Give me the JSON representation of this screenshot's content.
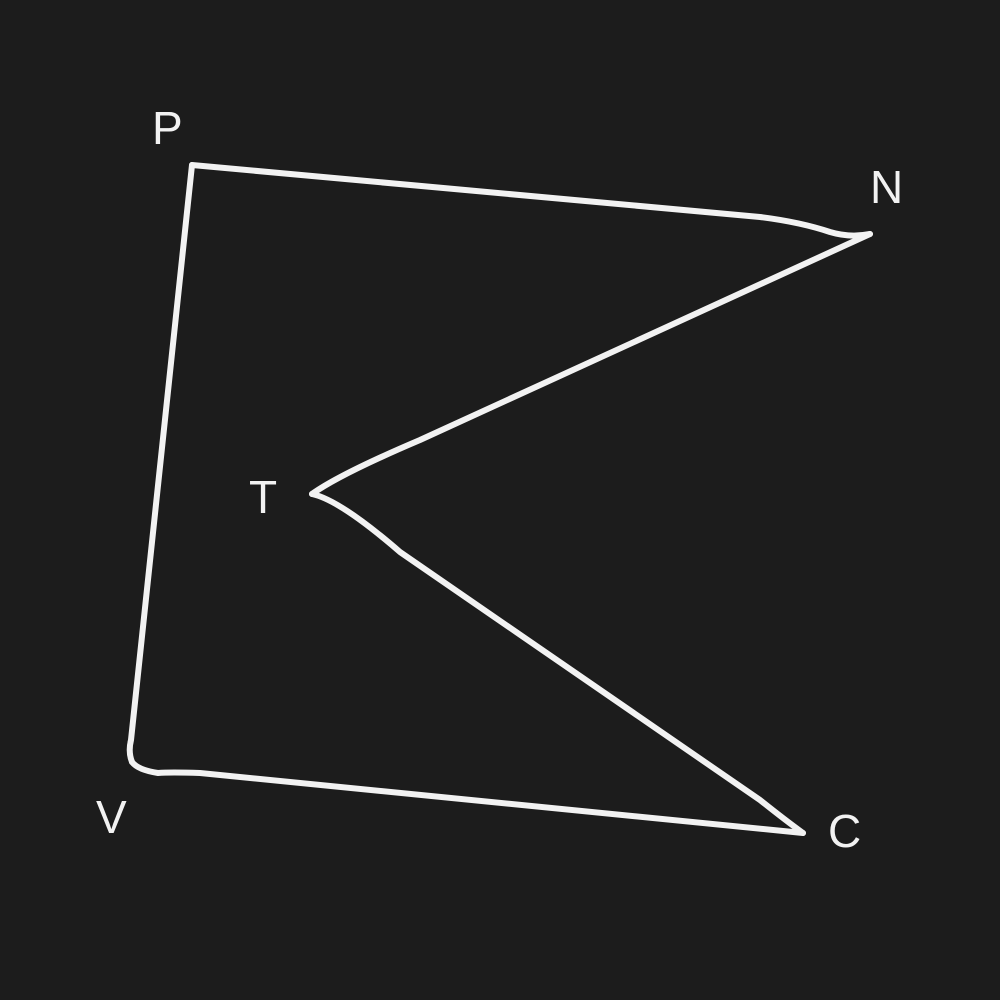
{
  "figure": {
    "background_color": "#1c1c1c",
    "stroke_color": "#f2f2f2",
    "shape": "hand-drawn pentagon",
    "vertices": [
      {
        "id": "P",
        "label": "P"
      },
      {
        "id": "N",
        "label": "N"
      },
      {
        "id": "T",
        "label": "T"
      },
      {
        "id": "C",
        "label": "C"
      },
      {
        "id": "V",
        "label": "V"
      }
    ],
    "edges": [
      {
        "from": "P",
        "to": "N"
      },
      {
        "from": "N",
        "to": "T"
      },
      {
        "from": "T",
        "to": "C"
      },
      {
        "from": "C",
        "to": "V"
      },
      {
        "from": "V",
        "to": "P"
      }
    ]
  }
}
